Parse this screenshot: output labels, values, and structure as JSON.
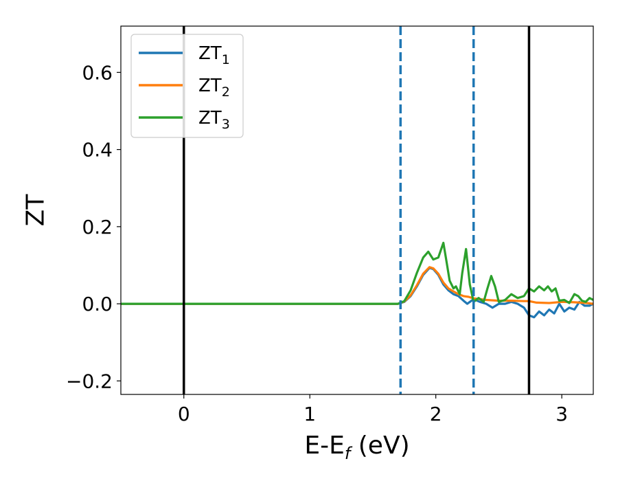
{
  "chart_data": {
    "type": "line",
    "xlabel": "E-E",
    "xlabel_sub": "f",
    "xlabel_unit": " (eV)",
    "ylabel": "ZT",
    "xlim": [
      -0.5,
      3.25
    ],
    "ylim": [
      -0.235,
      0.72
    ],
    "x_ticks": [
      0,
      1,
      2,
      3
    ],
    "x_tick_labels": [
      "0",
      "1",
      "2",
      "3"
    ],
    "y_ticks": [
      -0.2,
      0.0,
      0.2,
      0.4,
      0.6
    ],
    "y_tick_labels": [
      "−0.2",
      "0.0",
      "0.2",
      "0.4",
      "0.6"
    ],
    "grid": false,
    "legend_position": "top-left",
    "vertical_lines": [
      {
        "x": 0.0,
        "style": "solid",
        "color": "#000000"
      },
      {
        "x": 1.72,
        "style": "dashed",
        "color": "#1f77b4"
      },
      {
        "x": 2.3,
        "style": "dashed",
        "color": "#1f77b4"
      },
      {
        "x": 2.74,
        "style": "solid",
        "color": "#000000"
      }
    ],
    "series": [
      {
        "name": "ZT",
        "sub": "1",
        "color": "#1f77b4",
        "x": [
          -0.5,
          1.7,
          1.75,
          1.8,
          1.85,
          1.9,
          1.95,
          1.98,
          2.02,
          2.06,
          2.1,
          2.14,
          2.18,
          2.22,
          2.25,
          2.3,
          2.35,
          2.4,
          2.45,
          2.5,
          2.55,
          2.6,
          2.65,
          2.7,
          2.74,
          2.78,
          2.82,
          2.86,
          2.9,
          2.94,
          2.98,
          3.02,
          3.06,
          3.1,
          3.14,
          3.18,
          3.22,
          3.25
        ],
        "y": [
          0.0,
          0.0,
          0.005,
          0.02,
          0.045,
          0.075,
          0.093,
          0.09,
          0.075,
          0.05,
          0.035,
          0.025,
          0.02,
          0.008,
          0.0,
          0.012,
          0.005,
          0.0,
          -0.01,
          0.0,
          0.0,
          0.005,
          0.0,
          -0.01,
          -0.03,
          -0.035,
          -0.02,
          -0.03,
          -0.015,
          -0.025,
          0.0,
          -0.02,
          -0.01,
          -0.015,
          0.005,
          -0.005,
          -0.005,
          0.0
        ]
      },
      {
        "name": "ZT",
        "sub": "2",
        "color": "#ff7f0e",
        "x": [
          -0.5,
          1.7,
          1.75,
          1.8,
          1.85,
          1.9,
          1.95,
          1.98,
          2.02,
          2.06,
          2.1,
          2.14,
          2.18,
          2.22,
          2.26,
          2.3,
          2.4,
          2.5,
          2.6,
          2.7,
          2.74,
          2.8,
          2.9,
          3.0,
          3.1,
          3.2,
          3.25
        ],
        "y": [
          0.0,
          0.0,
          0.006,
          0.022,
          0.048,
          0.078,
          0.095,
          0.092,
          0.078,
          0.055,
          0.04,
          0.032,
          0.025,
          0.02,
          0.018,
          0.014,
          0.01,
          0.008,
          0.008,
          0.007,
          0.007,
          0.003,
          0.002,
          0.005,
          0.004,
          0.002,
          0.0
        ]
      },
      {
        "name": "ZT",
        "sub": "3",
        "color": "#2ca02c",
        "x": [
          -0.5,
          1.7,
          1.75,
          1.8,
          1.85,
          1.9,
          1.94,
          1.98,
          2.02,
          2.06,
          2.08,
          2.11,
          2.14,
          2.16,
          2.19,
          2.21,
          2.24,
          2.27,
          2.3,
          2.34,
          2.38,
          2.41,
          2.44,
          2.47,
          2.5,
          2.55,
          2.6,
          2.65,
          2.7,
          2.74,
          2.78,
          2.82,
          2.86,
          2.89,
          2.92,
          2.95,
          2.98,
          3.02,
          3.06,
          3.1,
          3.13,
          3.16,
          3.19,
          3.22,
          3.25
        ],
        "y": [
          0.0,
          0.0,
          0.007,
          0.035,
          0.08,
          0.12,
          0.135,
          0.115,
          0.12,
          0.158,
          0.12,
          0.06,
          0.04,
          0.045,
          0.025,
          0.08,
          0.142,
          0.05,
          0.005,
          0.015,
          0.005,
          0.04,
          0.072,
          0.045,
          0.005,
          0.01,
          0.025,
          0.015,
          0.02,
          0.04,
          0.032,
          0.045,
          0.035,
          0.045,
          0.032,
          0.04,
          0.008,
          0.01,
          0.002,
          0.025,
          0.02,
          0.008,
          0.005,
          0.015,
          0.01
        ]
      }
    ]
  }
}
